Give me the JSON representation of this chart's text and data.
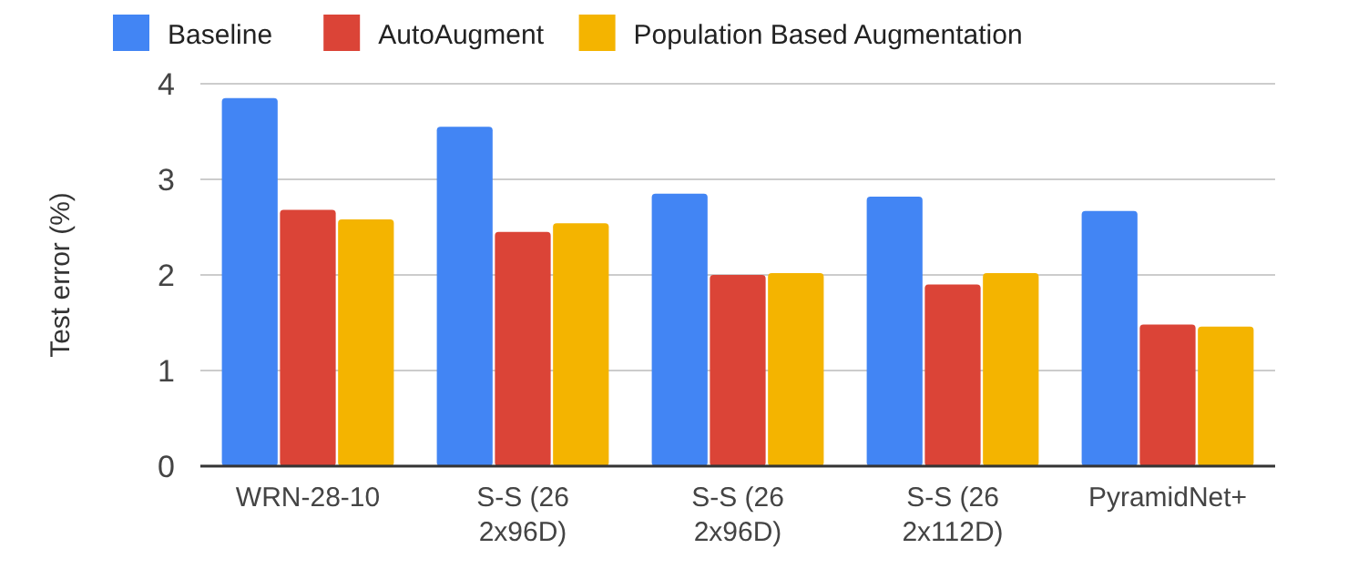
{
  "chart_data": {
    "type": "bar",
    "ylabel": "Test error (%)",
    "categories": [
      "WRN-28-10",
      "S-S (26 2x96D)",
      "S-S (26 2x96D)",
      "S-S (26 2x112D)",
      "PyramidNet+"
    ],
    "series": [
      {
        "name": "Baseline",
        "color": "#4285f4",
        "values": [
          3.85,
          3.55,
          2.85,
          2.82,
          2.67
        ]
      },
      {
        "name": "AutoAugment",
        "color": "#db4437",
        "values": [
          2.68,
          2.45,
          2.0,
          1.9,
          1.48
        ]
      },
      {
        "name": "Population Based Augmentation",
        "color": "#f4b400",
        "values": [
          2.58,
          2.54,
          2.02,
          2.02,
          1.46
        ]
      }
    ],
    "ylim": [
      0,
      4
    ],
    "yticks": [
      0,
      1,
      2,
      3,
      4
    ],
    "grid": "y",
    "legend": "top"
  }
}
